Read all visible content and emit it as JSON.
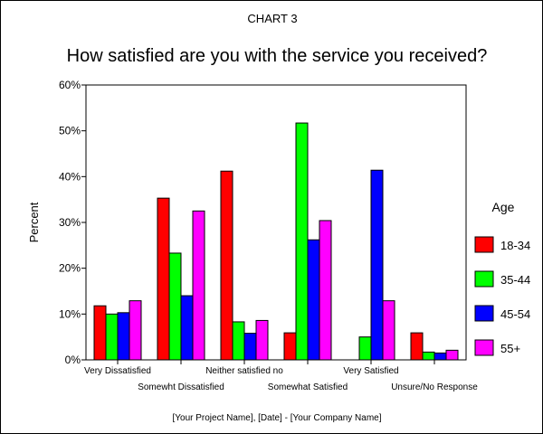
{
  "chart_data": {
    "type": "bar",
    "label": "CHART 3",
    "title": "How satisfied are you with the service you received?",
    "xlabel": "",
    "ylabel": "Percent",
    "ylim": [
      0,
      60
    ],
    "yticks": [
      "0%",
      "10%",
      "20%",
      "30%",
      "40%",
      "50%",
      "60%"
    ],
    "categories": [
      "Very Dissatisfied",
      "Somewht Dissatisfied",
      "Neither satisfied no",
      "Somewhat Satisfied",
      "Very Satisfied",
      "Unsure/No Response"
    ],
    "legend_title": "Age",
    "legend_position": "right",
    "grid": false,
    "series": [
      {
        "name": "18-34",
        "color": "#ff0000",
        "values": [
          11.8,
          35.3,
          41.2,
          5.9,
          0,
          5.9
        ]
      },
      {
        "name": "35-44",
        "color": "#00ff00",
        "values": [
          10,
          23.3,
          8.3,
          51.7,
          5,
          1.7
        ]
      },
      {
        "name": "45-54",
        "color": "#0000ff",
        "values": [
          10.3,
          14,
          5.8,
          26.2,
          41.4,
          1.5
        ]
      },
      {
        "name": "55+",
        "color": "#ff00ff",
        "values": [
          12.9,
          32.5,
          8.6,
          30.4,
          12.9,
          2.1
        ]
      }
    ]
  },
  "footer": "[Your Project Name], [Date]   -   [Your Company Name]"
}
